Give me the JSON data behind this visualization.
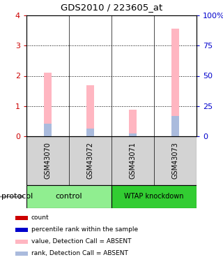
{
  "title": "GDS2010 / 223605_at",
  "samples": [
    "GSM43070",
    "GSM43072",
    "GSM43071",
    "GSM43073"
  ],
  "groups": [
    {
      "name": "control",
      "color": "#90EE90"
    },
    {
      "name": "WTAP knockdown",
      "color": "#32CD32"
    }
  ],
  "bar_values_pink": [
    2.1,
    1.68,
    0.88,
    3.57
  ],
  "bar_values_lightblue": [
    0.42,
    0.26,
    0.1,
    0.68
  ],
  "ylim_left": [
    0,
    4
  ],
  "ylim_right": [
    0,
    100
  ],
  "yticks_left": [
    0,
    1,
    2,
    3,
    4
  ],
  "yticks_right": [
    0,
    25,
    50,
    75,
    100
  ],
  "ytick_labels_right": [
    "0",
    "25",
    "50",
    "75",
    "100%"
  ],
  "left_tick_color": "#cc0000",
  "right_tick_color": "#0000cc",
  "pink_color": "#FFB6C1",
  "lightblue_color": "#AABBDD",
  "sample_area_color": "#d3d3d3",
  "bar_width": 0.18,
  "legend_items": [
    {
      "color": "#cc0000",
      "label": "count"
    },
    {
      "color": "#0000cc",
      "label": "percentile rank within the sample"
    },
    {
      "color": "#FFB6C1",
      "label": "value, Detection Call = ABSENT"
    },
    {
      "color": "#AABBDD",
      "label": "rank, Detection Call = ABSENT"
    }
  ]
}
